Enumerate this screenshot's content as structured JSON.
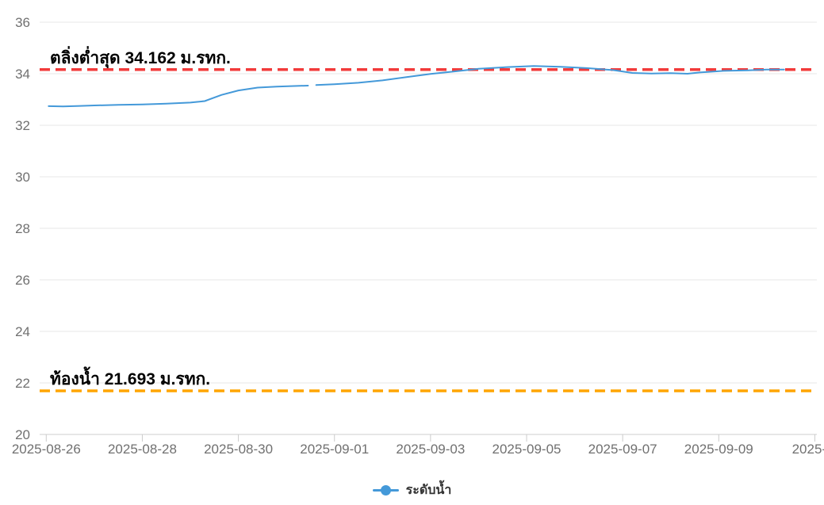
{
  "chart_data": {
    "type": "line",
    "title": "",
    "x_axis": {
      "start_date": "2025-08-26",
      "tick_interval_days": 2,
      "tick_labels": [
        "2025-08-26",
        "2025-08-28",
        "2025-08-30",
        "2025-09-01",
        "2025-09-03",
        "2025-09-05",
        "2025-09-07",
        "2025-09-09",
        "2025-..."
      ]
    },
    "y_axis": {
      "ticks": [
        20,
        22,
        24,
        26,
        28,
        30,
        32,
        34,
        36
      ],
      "min": 20,
      "max": 36
    },
    "series": [
      {
        "name": "ระดับน้ำ",
        "color": "#4499d9",
        "segments": [
          [
            [
              0.05,
              32.74
            ],
            [
              0.35,
              32.73
            ],
            [
              0.7,
              32.75
            ],
            [
              1,
              32.77
            ],
            [
              1.5,
              32.79
            ],
            [
              2,
              32.81
            ],
            [
              2.5,
              32.84
            ],
            [
              3,
              32.88
            ],
            [
              3.3,
              32.94
            ],
            [
              3.65,
              33.18
            ],
            [
              4,
              33.35
            ],
            [
              4.4,
              33.46
            ],
            [
              4.8,
              33.5
            ],
            [
              5.1,
              33.52
            ],
            [
              5.45,
              33.54
            ]
          ],
          [
            [
              5.62,
              33.56
            ],
            [
              6,
              33.59
            ],
            [
              6.5,
              33.65
            ],
            [
              7,
              33.74
            ],
            [
              7.5,
              33.87
            ],
            [
              8,
              33.99
            ],
            [
              8.5,
              34.09
            ],
            [
              9,
              34.19
            ],
            [
              9.6,
              34.26
            ],
            [
              10.15,
              34.3
            ],
            [
              10.7,
              34.27
            ],
            [
              11.25,
              34.22
            ],
            [
              11.8,
              34.14
            ],
            [
              12.2,
              34.03
            ],
            [
              12.6,
              34.01
            ],
            [
              13,
              34.02
            ],
            [
              13.35,
              34.0
            ],
            [
              13.6,
              34.05
            ],
            [
              14.1,
              34.11
            ],
            [
              14.6,
              34.13
            ],
            [
              15,
              34.16
            ],
            [
              15.36,
              34.16
            ]
          ]
        ]
      }
    ],
    "guides": [
      {
        "label": "ตลิ่งต่ำสุด 34.162 ม.รทก.",
        "value": 34.162,
        "color": "#f23b3b"
      },
      {
        "label": "ท้องน้ำ 21.693 ม.รทก.",
        "value": 21.693,
        "color": "#ffa500"
      }
    ],
    "legend": {
      "position": "bottom",
      "items": [
        {
          "label": "ระดับน้ำ",
          "color": "#4499d9"
        }
      ]
    },
    "grid": true
  },
  "colors": {
    "background": "#ffffff",
    "gridline": "#e7e7e7",
    "axis_line": "#cccccc",
    "tick_text": "#707070",
    "annotation_text": "#000000"
  }
}
